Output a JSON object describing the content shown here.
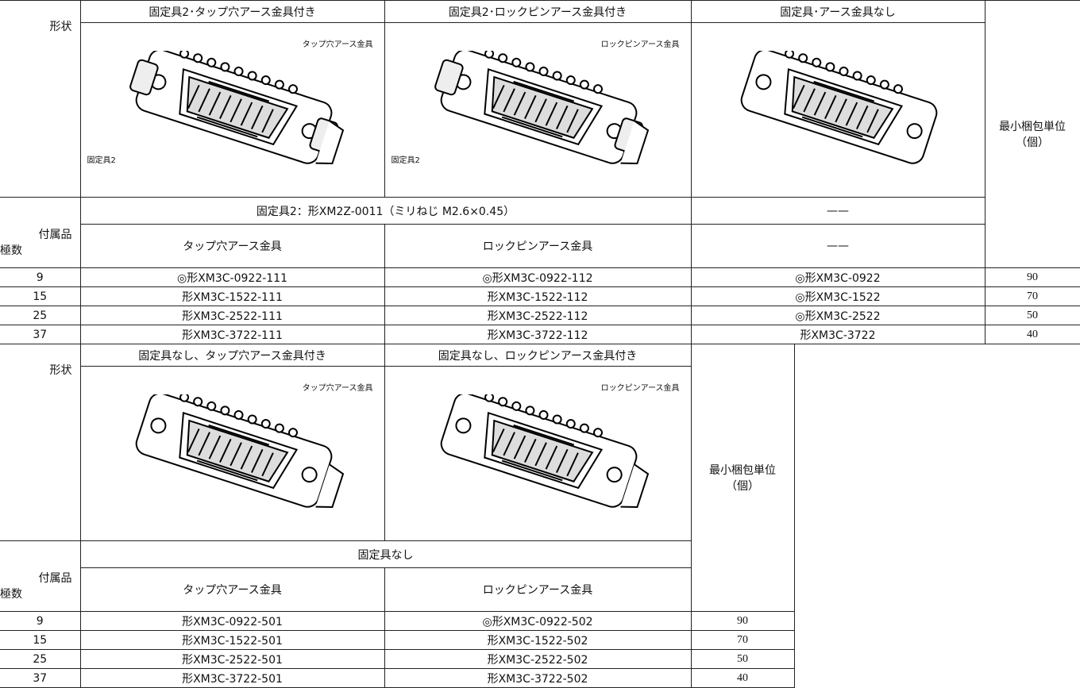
{
  "tables": [
    {
      "shape_label": "形状",
      "accessory_label": "付属品",
      "poles_label": "極数",
      "min_pack_label": [
        "最小梱包単位",
        "（個）"
      ],
      "columns": [
        {
          "title": "固定具2･タップ穴アース金具付き",
          "image_labels": [
            "タップ穴アース金具",
            "固定具2"
          ],
          "accessory": "タップ穴アース金具"
        },
        {
          "title": "固定具2･ロックピンアース金具付き",
          "image_labels": [
            "ロックピンアース金具",
            "固定具2"
          ],
          "accessory": "ロックピンアース金具"
        },
        {
          "title": "固定具･アース金具なし",
          "image_labels": [],
          "accessory": "——"
        }
      ],
      "fixing": [
        "固定具2：形XM2Z-0011（ミリねじ M2.6×0.45）",
        "——"
      ],
      "rows": [
        [
          "9",
          "◎形XM3C-0922-111",
          "◎形XM3C-0922-112",
          "◎形XM3C-0922",
          "90"
        ],
        [
          "15",
          "形XM3C-1522-111",
          "形XM3C-1522-112",
          "◎形XM3C-1522",
          "70"
        ],
        [
          "25",
          "形XM3C-2522-111",
          "形XM3C-2522-112",
          "◎形XM3C-2522",
          "50"
        ],
        [
          "37",
          "形XM3C-3722-111",
          "形XM3C-3722-112",
          "形XM3C-3722",
          "40"
        ]
      ]
    },
    {
      "shape_label": "形状",
      "accessory_label": "付属品",
      "poles_label": "極数",
      "min_pack_label": [
        "最小梱包単位",
        "（個）"
      ],
      "columns": [
        {
          "title": "固定具なし、タップ穴アース金具付き",
          "image_labels": [
            "タップ穴アース金具"
          ],
          "accessory": "タップ穴アース金具"
        },
        {
          "title": "固定具なし、ロックピンアース金具付き",
          "image_labels": [
            "ロックピンアース金具"
          ],
          "accessory": "ロックピンアース金具"
        }
      ],
      "fixing": [
        "固定具なし"
      ],
      "rows": [
        [
          "9",
          "形XM3C-0922-501",
          "◎形XM3C-0922-502",
          "90"
        ],
        [
          "15",
          "形XM3C-1522-501",
          "形XM3C-1522-502",
          "70"
        ],
        [
          "25",
          "形XM3C-2522-501",
          "形XM3C-2522-502",
          "50"
        ],
        [
          "37",
          "形XM3C-3722-501",
          "形XM3C-3722-502",
          "40"
        ]
      ]
    }
  ]
}
